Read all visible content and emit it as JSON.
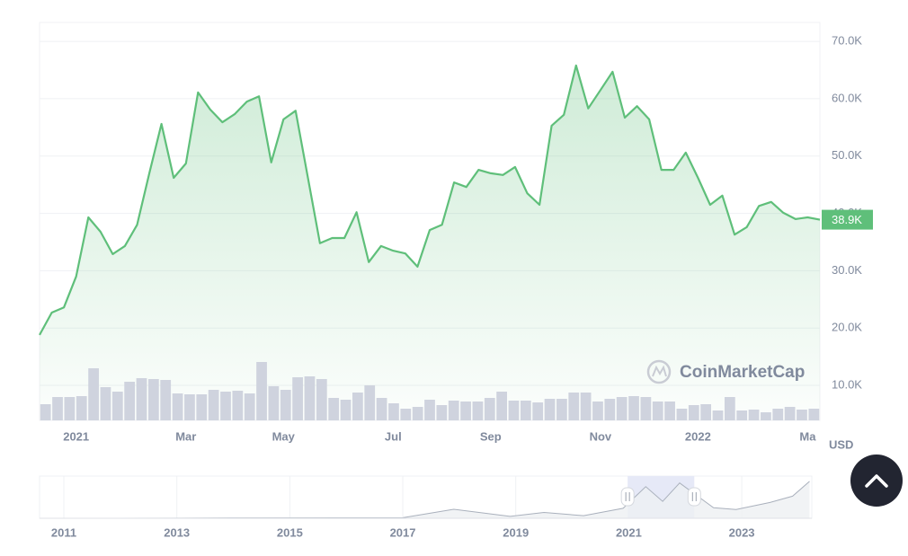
{
  "chart_data": [
    {
      "type": "line",
      "ylabel": "USD",
      "watermark": "CoinMarketCap",
      "categories": [
        null,
        null,
        null,
        "2021",
        null,
        null,
        null,
        null,
        null,
        null,
        null,
        null,
        "Mar",
        null,
        null,
        null,
        null,
        null,
        null,
        null,
        "May",
        null,
        null,
        null,
        null,
        null,
        null,
        null,
        null,
        "Jul",
        null,
        null,
        null,
        null,
        null,
        null,
        null,
        "Sep",
        null,
        null,
        null,
        null,
        null,
        null,
        null,
        null,
        "Nov",
        null,
        null,
        null,
        null,
        null,
        null,
        null,
        "2022",
        null,
        null,
        null,
        null,
        null,
        null,
        null,
        null,
        "Ma",
        null
      ],
      "series": [
        {
          "color": "#5fbf7a",
          "values": [
            18800,
            22700,
            23600,
            29000,
            39300,
            36800,
            32900,
            34300,
            38000,
            47000,
            55600,
            46200,
            48700,
            61100,
            58100,
            55900,
            57300,
            59500,
            60400,
            48900,
            56400,
            57900,
            46300,
            34800,
            35700,
            35700,
            40200,
            31500,
            34300,
            33500,
            33000,
            30700,
            37100,
            38000,
            45400,
            44600,
            47600,
            47000,
            46700,
            48100,
            43500,
            41500,
            55300,
            57200,
            65800,
            58300,
            61500,
            64700,
            56700,
            58700,
            56400,
            47600,
            47600,
            50600,
            46200,
            41500,
            43100,
            36300,
            37600,
            41300,
            42000,
            40100,
            39000,
            39300,
            38900
          ],
          "value_labels": [
            null,
            null,
            null,
            null,
            null,
            null,
            null,
            null,
            null,
            null,
            null,
            null,
            null,
            null,
            null,
            null,
            null,
            null,
            null,
            null,
            null,
            null,
            null,
            null,
            null,
            null,
            null,
            null,
            null,
            null,
            null,
            null,
            null,
            null,
            null,
            null,
            null,
            null,
            null,
            null,
            null,
            null,
            null,
            null,
            null,
            null,
            null,
            null,
            null,
            null,
            null,
            null,
            null,
            null,
            null,
            null,
            null,
            null,
            null,
            null,
            null,
            null,
            null,
            null,
            "38.9K"
          ]
        },
        {
          "color": "#cfd3de",
          "axis": "y2",
          "values": [
            18,
            26,
            26,
            27,
            58,
            37,
            32,
            43,
            47,
            46,
            45,
            30,
            29,
            29,
            34,
            32,
            33,
            30,
            65,
            38,
            34,
            48,
            49,
            46,
            25,
            23,
            31,
            39,
            25,
            19,
            13,
            15,
            23,
            17,
            22,
            21,
            21,
            25,
            32,
            22,
            22,
            20,
            24,
            24,
            31,
            31,
            21,
            24,
            26,
            27,
            26,
            21,
            21,
            13,
            17,
            18,
            11,
            26,
            11,
            12,
            9,
            13,
            15,
            12,
            13
          ]
        }
      ],
      "ylim": [
        3900,
        73300
      ],
      "yticks": [
        {
          "value": 10000,
          "label": "10.0K"
        },
        {
          "value": 20000,
          "label": "20.0K"
        },
        {
          "value": 30000,
          "label": "30.0K"
        },
        {
          "value": 40000,
          "label": "40.0K"
        },
        {
          "value": 50000,
          "label": "50.0K"
        },
        {
          "value": 60000,
          "label": "60.0K"
        },
        {
          "value": 70000,
          "label": "70.0K"
        }
      ],
      "y2lim": [
        0,
        443
      ],
      "grid": true
    },
    {
      "type": "area",
      "x": [
        2011,
        2013,
        2014,
        2017,
        2017.9,
        2018.9,
        2019.5,
        2020.2,
        2020.9,
        2021.3,
        2021.6,
        2021.9,
        2022.5,
        2022.9,
        2023.5,
        2023.9,
        2024.2
      ],
      "values": [
        0,
        100,
        600,
        1000,
        17000,
        3500,
        11000,
        5000,
        19000,
        60000,
        32000,
        67000,
        20000,
        16500,
        30000,
        42000,
        70000
      ],
      "color": "#a9b0bc",
      "xlim": [
        2010.57,
        2024.24
      ],
      "xticks": [
        2011,
        2013,
        2015,
        2017,
        2019,
        2021,
        2023
      ],
      "ylim": [
        0,
        75000
      ],
      "selection": [
        2020.98,
        2022.16
      ]
    }
  ]
}
